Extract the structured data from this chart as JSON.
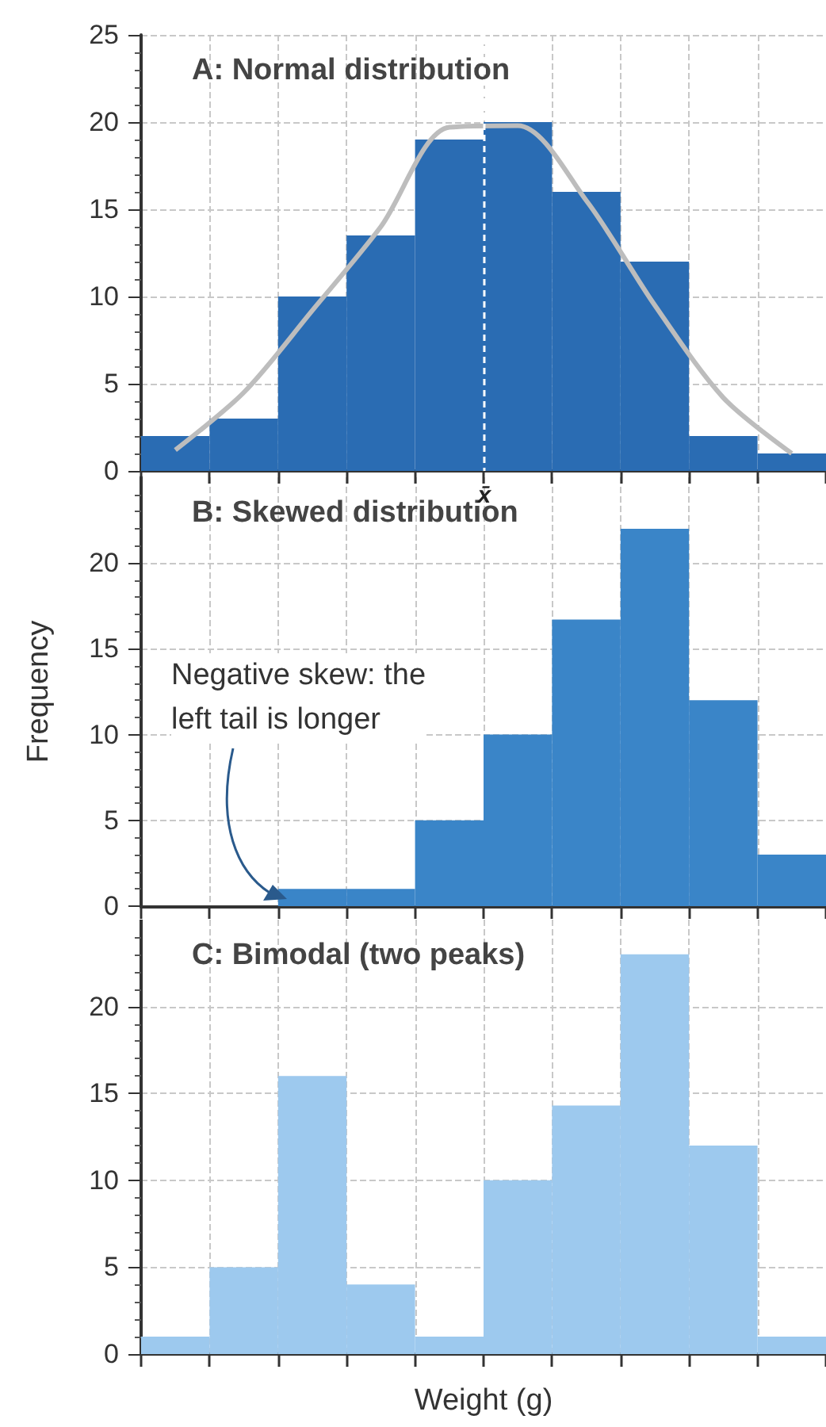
{
  "chart_data": [
    {
      "type": "bar",
      "title": "A: Normal distribution",
      "categories": [
        null,
        null,
        null,
        null,
        null,
        null,
        null,
        null,
        null,
        null
      ],
      "series": [
        {
          "color": "#2a6cb3",
          "values": [
            2,
            3,
            10,
            13.5,
            19,
            20,
            16,
            12,
            2,
            1
          ]
        },
        {
          "type": "line",
          "color": "#bdbdbd",
          "values": [
            1.2,
            4.5,
            9.2,
            14,
            19.7,
            19.8,
            15.5,
            9.5,
            4.2,
            1
          ]
        }
      ],
      "ref_lines": [
        {
          "axis": "x",
          "label": "x̄",
          "color": "#ffffff",
          "line_style": "dashed"
        }
      ],
      "ylim": [
        0,
        25
      ],
      "yticks": [
        0,
        5,
        10,
        15,
        20,
        25
      ],
      "grid": true
    },
    {
      "type": "bar",
      "title": "B: Skewed distribution",
      "ylabel": "Frequency",
      "categories": [
        null,
        null,
        null,
        null,
        null,
        null,
        null,
        null,
        null,
        null
      ],
      "values": [
        0,
        0,
        1,
        1,
        5,
        10,
        16.7,
        22,
        12,
        3
      ],
      "color": "#3a85c8",
      "annotations": [
        "Negative skew: the\nleft tail is longer"
      ],
      "ylim": [
        0,
        25
      ],
      "yticks": [
        0,
        5,
        10,
        15,
        20
      ],
      "grid": true
    },
    {
      "type": "bar",
      "title": "C: Bimodal (two peaks)",
      "xlabel": "Weight (g)",
      "categories": [
        null,
        null,
        null,
        null,
        null,
        null,
        null,
        null,
        null,
        null
      ],
      "values": [
        1,
        5,
        16,
        4,
        1,
        10,
        14.3,
        23,
        12,
        1
      ],
      "color": "#9dc9ee",
      "ylim": [
        0,
        25
      ],
      "yticks": [
        0,
        5,
        10,
        15,
        20
      ],
      "grid": true
    }
  ]
}
